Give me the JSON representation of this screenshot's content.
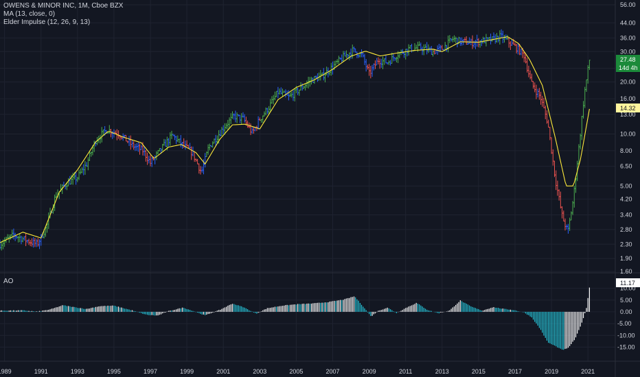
{
  "header": {
    "title": "OWENS & MINOR INC, 1M, Cboe BZX",
    "ma_label": "MA (13, close, 0)",
    "impulse_label": "Elder Impulse (12, 26, 9, 13)",
    "ao_label": "AO"
  },
  "badges": {
    "price": "27.48",
    "countdown": "14d 4h",
    "ma_value": "14.32",
    "ao_value": "11.17"
  },
  "colors": {
    "background": "#131722",
    "grid": "#1f2330",
    "bull": "#26a69a",
    "green": "#4caf50",
    "red": "#ef5350",
    "blue": "#2962ff",
    "ma": "#ffeb3b",
    "ao_up": "#ffffff",
    "ao_down": "#26c6da",
    "price_badge": "#1b8a3a",
    "ma_badge": "#fff59d"
  },
  "chart_data": [
    {
      "type": "candlestick",
      "title": "OWENS & MINOR INC, 1M, Cboe BZX",
      "scale": "log",
      "ylim": [
        1.6,
        56.0
      ],
      "y_ticks": [
        56.0,
        44.0,
        36.0,
        30.0,
        24.0,
        20.0,
        16.0,
        13.0,
        10.0,
        8.0,
        6.5,
        5.0,
        4.2,
        3.4,
        2.8,
        2.3,
        1.9,
        1.6
      ],
      "y_tick_labels": [
        "56.00",
        "44.00",
        "36.00",
        "30.00",
        "24.00",
        "20.00",
        "16.00",
        "13.00",
        "10.00",
        "8.00",
        "6.50",
        "5.00",
        "4.20",
        "3.40",
        "2.80",
        "2.30",
        "1.90",
        "1.60"
      ],
      "x_range": [
        1988.75,
        2022.5
      ],
      "x_ticks": [
        1989,
        1991,
        1993,
        1995,
        1997,
        1999,
        2001,
        2003,
        2005,
        2007,
        2009,
        2011,
        2013,
        2015,
        2017,
        2019,
        2021
      ],
      "x_tick_labels": [
        "1989",
        "1991",
        "1993",
        "1995",
        "1997",
        "1999",
        "2001",
        "2003",
        "2005",
        "2007",
        "2009",
        "2011",
        "2013",
        "2015",
        "2017",
        "2019",
        "2021"
      ],
      "price_anchors": {
        "x": [
          1988.75,
          1989.5,
          1990.3,
          1990.8,
          1991.3,
          1991.8,
          1992.4,
          1993.0,
          1993.5,
          1994.0,
          1994.6,
          1995.3,
          1996.0,
          1996.6,
          1997.0,
          1997.6,
          1998.2,
          1998.8,
          1999.3,
          1999.8,
          2000.2,
          2000.6,
          2001.1,
          2001.6,
          2002.1,
          2002.6,
          2003.0,
          2003.5,
          2004.0,
          2004.6,
          2005.2,
          2005.8,
          2006.4,
          2007.0,
          2007.6,
          2008.1,
          2008.6,
          2009.0,
          2009.5,
          2010.0,
          2010.6,
          2011.2,
          2011.8,
          2012.5,
          2013.0,
          2013.6,
          2014.0,
          2014.6,
          2015.2,
          2015.8,
          2016.2,
          2016.7,
          2017.1,
          2017.5,
          2017.9,
          2018.4,
          2018.8,
          2019.2,
          2019.6,
          2019.9,
          2020.2,
          2020.5,
          2020.8,
          2021.1
        ],
        "close": [
          2.3,
          2.6,
          2.4,
          2.3,
          2.9,
          4.4,
          5.2,
          5.6,
          6.7,
          9.2,
          10.6,
          10.0,
          8.6,
          8.0,
          6.8,
          8.2,
          9.8,
          8.6,
          7.8,
          6.0,
          8.4,
          9.5,
          11.2,
          12.7,
          12.2,
          10.1,
          12.2,
          14.3,
          17.5,
          16.3,
          18.2,
          20.5,
          21.6,
          24.5,
          28.0,
          30.5,
          28.6,
          22.3,
          26.8,
          26.0,
          29.2,
          31.2,
          31.6,
          30.0,
          31.2,
          35.6,
          34.3,
          33.8,
          34.6,
          35.2,
          36.8,
          33.8,
          31.5,
          28.5,
          19.6,
          16.3,
          11.6,
          5.6,
          3.3,
          2.7,
          4.2,
          8.3,
          17.0,
          27.5
        ]
      },
      "ma_anchors": {
        "x": [
          1988.75,
          1990.0,
          1991.0,
          1992.0,
          1993.0,
          1994.0,
          1994.7,
          1995.5,
          1996.5,
          1997.2,
          1998.0,
          1998.7,
          1999.5,
          2000.0,
          2000.8,
          2001.5,
          2002.2,
          2003.0,
          2004.0,
          2005.0,
          2006.0,
          2007.0,
          2008.0,
          2008.8,
          2009.6,
          2010.5,
          2011.5,
          2012.5,
          2013.0,
          2014.0,
          2015.0,
          2016.0,
          2016.6,
          2017.2,
          2017.8,
          2018.5,
          2019.2,
          2019.8,
          2020.2,
          2020.6,
          2021.1
        ],
        "value": [
          2.35,
          2.7,
          2.5,
          4.6,
          6.2,
          9.0,
          10.4,
          9.6,
          8.9,
          7.2,
          8.4,
          8.7,
          7.8,
          6.7,
          9.3,
          11.3,
          11.4,
          10.7,
          15.8,
          18.6,
          20.6,
          23.7,
          28.2,
          30.2,
          28.3,
          29.4,
          30.5,
          31.0,
          30.0,
          34.2,
          34.0,
          35.6,
          36.6,
          33.4,
          27.0,
          19.1,
          9.6,
          5.0,
          5.0,
          7.2,
          14.3
        ]
      }
    },
    {
      "type": "bar",
      "title": "AO",
      "ylim": [
        -17.5,
        12.5
      ],
      "y_ticks": [
        10.0,
        5.0,
        0.0,
        -5.0,
        -10.0,
        -15.0
      ],
      "y_tick_labels": [
        "10.00",
        "5.00",
        "0.00",
        "-5.00",
        "-10.00",
        "-15.00"
      ],
      "ao_anchors": {
        "x": [
          1988.75,
          1990.0,
          1990.8,
          1991.5,
          1992.2,
          1992.8,
          1993.5,
          1994.2,
          1995.0,
          1996.0,
          1996.8,
          1997.4,
          1998.0,
          1998.8,
          1999.4,
          2000.0,
          2000.8,
          2001.5,
          2002.1,
          2002.8,
          2003.4,
          2004.2,
          2005.0,
          2006.0,
          2006.8,
          2007.6,
          2008.2,
          2008.7,
          2009.1,
          2009.5,
          2010.0,
          2010.5,
          2011.0,
          2011.6,
          2012.2,
          2012.8,
          2013.4,
          2014.0,
          2014.6,
          2015.2,
          2015.8,
          2016.4,
          2016.9,
          2017.5,
          2017.9,
          2018.4,
          2018.8,
          2019.2,
          2019.6,
          2019.9,
          2020.3,
          2020.6,
          2020.9,
          2021.1
        ],
        "value": [
          0.5,
          0.6,
          0.1,
          1.0,
          2.8,
          2.0,
          1.2,
          2.4,
          2.6,
          0.6,
          -1.3,
          -1.6,
          0.3,
          1.8,
          0.2,
          -1.5,
          0.8,
          3.5,
          2.0,
          -0.8,
          1.5,
          2.6,
          3.2,
          3.6,
          4.2,
          5.2,
          6.6,
          2.0,
          -2.0,
          0.4,
          1.8,
          -0.5,
          1.6,
          3.8,
          0.8,
          -0.6,
          0.5,
          4.8,
          2.2,
          0.5,
          2.0,
          1.2,
          0.8,
          -0.3,
          -2.2,
          -7.5,
          -13.0,
          -14.5,
          -16.2,
          -15.5,
          -11.5,
          -6.0,
          0.8,
          11.17
        ]
      }
    }
  ]
}
